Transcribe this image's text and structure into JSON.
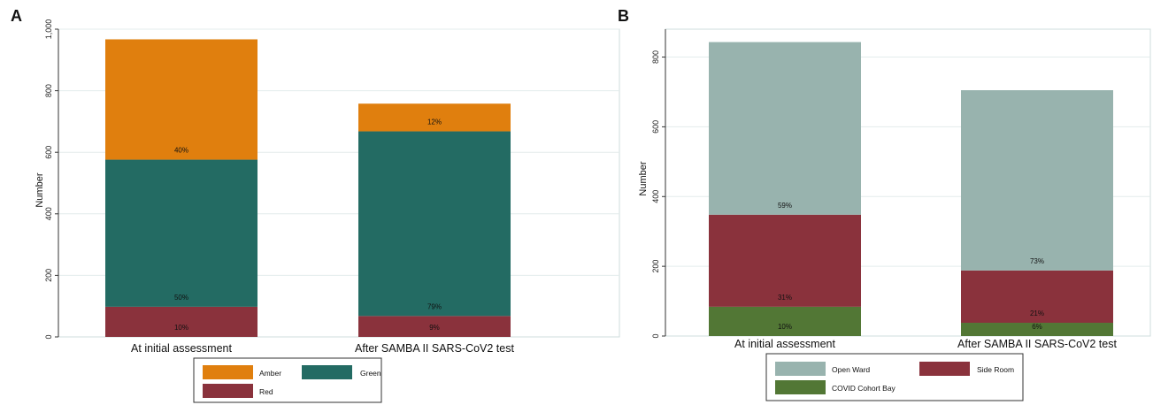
{
  "chart_data": [
    {
      "panel_label": "A",
      "type": "bar",
      "stacked": true,
      "categories": [
        "At initial assessment",
        "After SAMBA II SARS-CoV2 test"
      ],
      "series": [
        {
          "name": "Red",
          "color": "#8a323c",
          "values": [
            98,
            68
          ],
          "labels": [
            "10%",
            "9%"
          ]
        },
        {
          "name": "Green",
          "color": "#236b63",
          "values": [
            478,
            600
          ],
          "labels": [
            "50%",
            "79%"
          ]
        },
        {
          "name": "Amber",
          "color": "#e07f0e",
          "values": [
            391,
            90
          ],
          "labels": [
            "40%",
            "12%"
          ]
        }
      ],
      "ylabel": "Number",
      "ylim": [
        0,
        1000
      ],
      "yticks": [
        0,
        200,
        400,
        600,
        800,
        1000
      ],
      "ytick_labels": [
        "0",
        "200",
        "400",
        "600",
        "800",
        "1,000"
      ],
      "grid": true,
      "legend_order": [
        "Amber",
        "Green",
        "Red"
      ],
      "legend_position": "bottom"
    },
    {
      "panel_label": "B",
      "type": "bar",
      "stacked": true,
      "categories": [
        "At initial assessment",
        "After SAMBA II SARS-CoV2 test"
      ],
      "series": [
        {
          "name": "COVID Cohort Bay",
          "color": "#527735",
          "values": [
            84,
            38
          ],
          "labels": [
            "10%",
            "6%"
          ]
        },
        {
          "name": "Side Room",
          "color": "#8a323c",
          "values": [
            264,
            150
          ],
          "labels": [
            "31%",
            "21%"
          ]
        },
        {
          "name": "Open Ward",
          "color": "#98b3ae",
          "values": [
            495,
            517
          ],
          "labels": [
            "59%",
            "73%"
          ]
        }
      ],
      "ylabel": "Number",
      "ylim": [
        0,
        880
      ],
      "yticks": [
        0,
        200,
        400,
        600,
        800
      ],
      "ytick_labels": [
        "0",
        "200",
        "400",
        "600",
        "800"
      ],
      "grid": true,
      "legend_order": [
        "Open Ward",
        "Side Room",
        "COVID Cohort Bay"
      ],
      "legend_position": "bottom"
    }
  ]
}
